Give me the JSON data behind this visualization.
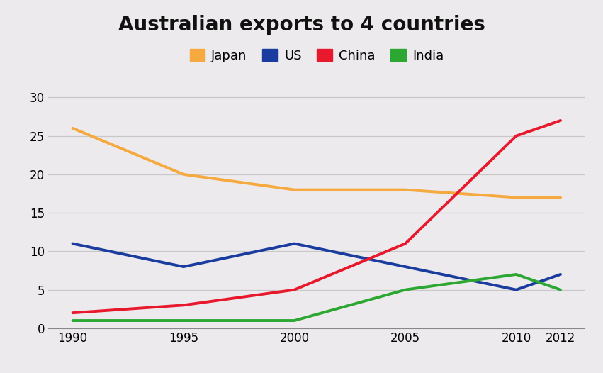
{
  "title": "Australian exports to 4 countries",
  "years": [
    1990,
    1995,
    2000,
    2005,
    2010,
    2012
  ],
  "series": {
    "Japan": {
      "values": [
        26,
        20,
        18,
        18,
        17,
        17
      ],
      "color": "#F5A93E",
      "linewidth": 2.8
    },
    "US": {
      "values": [
        11,
        8,
        11,
        8,
        5,
        7
      ],
      "color": "#1A3C9E",
      "linewidth": 2.8
    },
    "China": {
      "values": [
        2,
        3,
        5,
        11,
        25,
        27
      ],
      "color": "#E8192C",
      "linewidth": 2.8
    },
    "India": {
      "values": [
        1,
        1,
        1,
        5,
        7,
        5
      ],
      "color": "#2CA832",
      "linewidth": 2.8
    }
  },
  "ylim": [
    0,
    32
  ],
  "yticks": [
    0,
    5,
    10,
    15,
    20,
    25,
    30
  ],
  "background_color": "#EDEAED",
  "grid_color": "#C8C8C8",
  "title_fontsize": 20,
  "legend_order": [
    "Japan",
    "US",
    "China",
    "India"
  ]
}
